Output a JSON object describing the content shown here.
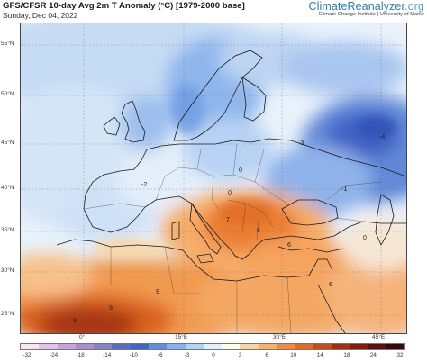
{
  "header": {
    "title": "GFS/CFSR 10-day Avg 2m T Anomaly (°C) [1979-2000 base]",
    "date": "Sunday, Dec 04, 2022",
    "brand_main": "ClimateReanalyzer",
    "brand_suffix": ".org",
    "brand_sub": "Climate Change Institute | University of Maine"
  },
  "map": {
    "latitude_labels": [
      "55°N",
      "50°N",
      "45°N",
      "40°N",
      "35°N",
      "30°N",
      "25°N"
    ],
    "longitude_labels": [
      "0°",
      "15°E",
      "30°E",
      "45°E"
    ],
    "value_labels": [
      "-2",
      "0",
      "-3",
      "0",
      "6",
      "6",
      "9",
      "-1",
      "0",
      "6",
      "7",
      "-4",
      "9",
      "9"
    ]
  },
  "colorbar": {
    "ticks": [
      "-32",
      "-24",
      "-18",
      "-14",
      "-10",
      "-6",
      "-3",
      "0",
      "3",
      "6",
      "10",
      "14",
      "18",
      "24",
      "32"
    ],
    "colors": [
      "#f7e7f5",
      "#e3c3ea",
      "#c7a2dc",
      "#a98ed0",
      "#8484c6",
      "#5a6cc2",
      "#3e66c9",
      "#5d8ee2",
      "#86b3ef",
      "#b4d3f8",
      "#e3f0fb",
      "#fffbe6",
      "#fbd5a1",
      "#f8b06d",
      "#f28a3c",
      "#e36b22",
      "#c94a15",
      "#a72d10",
      "#851b0f",
      "#5e0f0d",
      "#3a0707"
    ]
  }
}
